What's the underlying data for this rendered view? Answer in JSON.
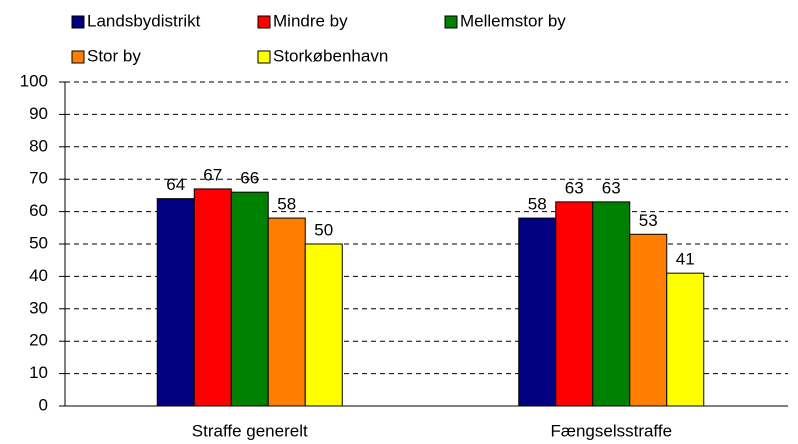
{
  "chart_data": {
    "type": "bar",
    "categories": [
      "Straffe generelt",
      "Fængselsstraffe"
    ],
    "series": [
      {
        "name": "Landsbydistrikt",
        "color": "#000080",
        "values": [
          64,
          58
        ]
      },
      {
        "name": "Mindre by",
        "color": "#ff0000",
        "values": [
          67,
          63
        ]
      },
      {
        "name": "Mellemstor by",
        "color": "#008000",
        "values": [
          66,
          63
        ]
      },
      {
        "name": "Stor by",
        "color": "#ff8000",
        "values": [
          58,
          53
        ]
      },
      {
        "name": "Storkøbenhavn",
        "color": "#ffff00",
        "values": [
          50,
          41
        ]
      }
    ],
    "ylim": [
      0,
      100
    ],
    "yticks": [
      0,
      10,
      20,
      30,
      40,
      50,
      60,
      70,
      80,
      90,
      100
    ],
    "grid": true
  }
}
